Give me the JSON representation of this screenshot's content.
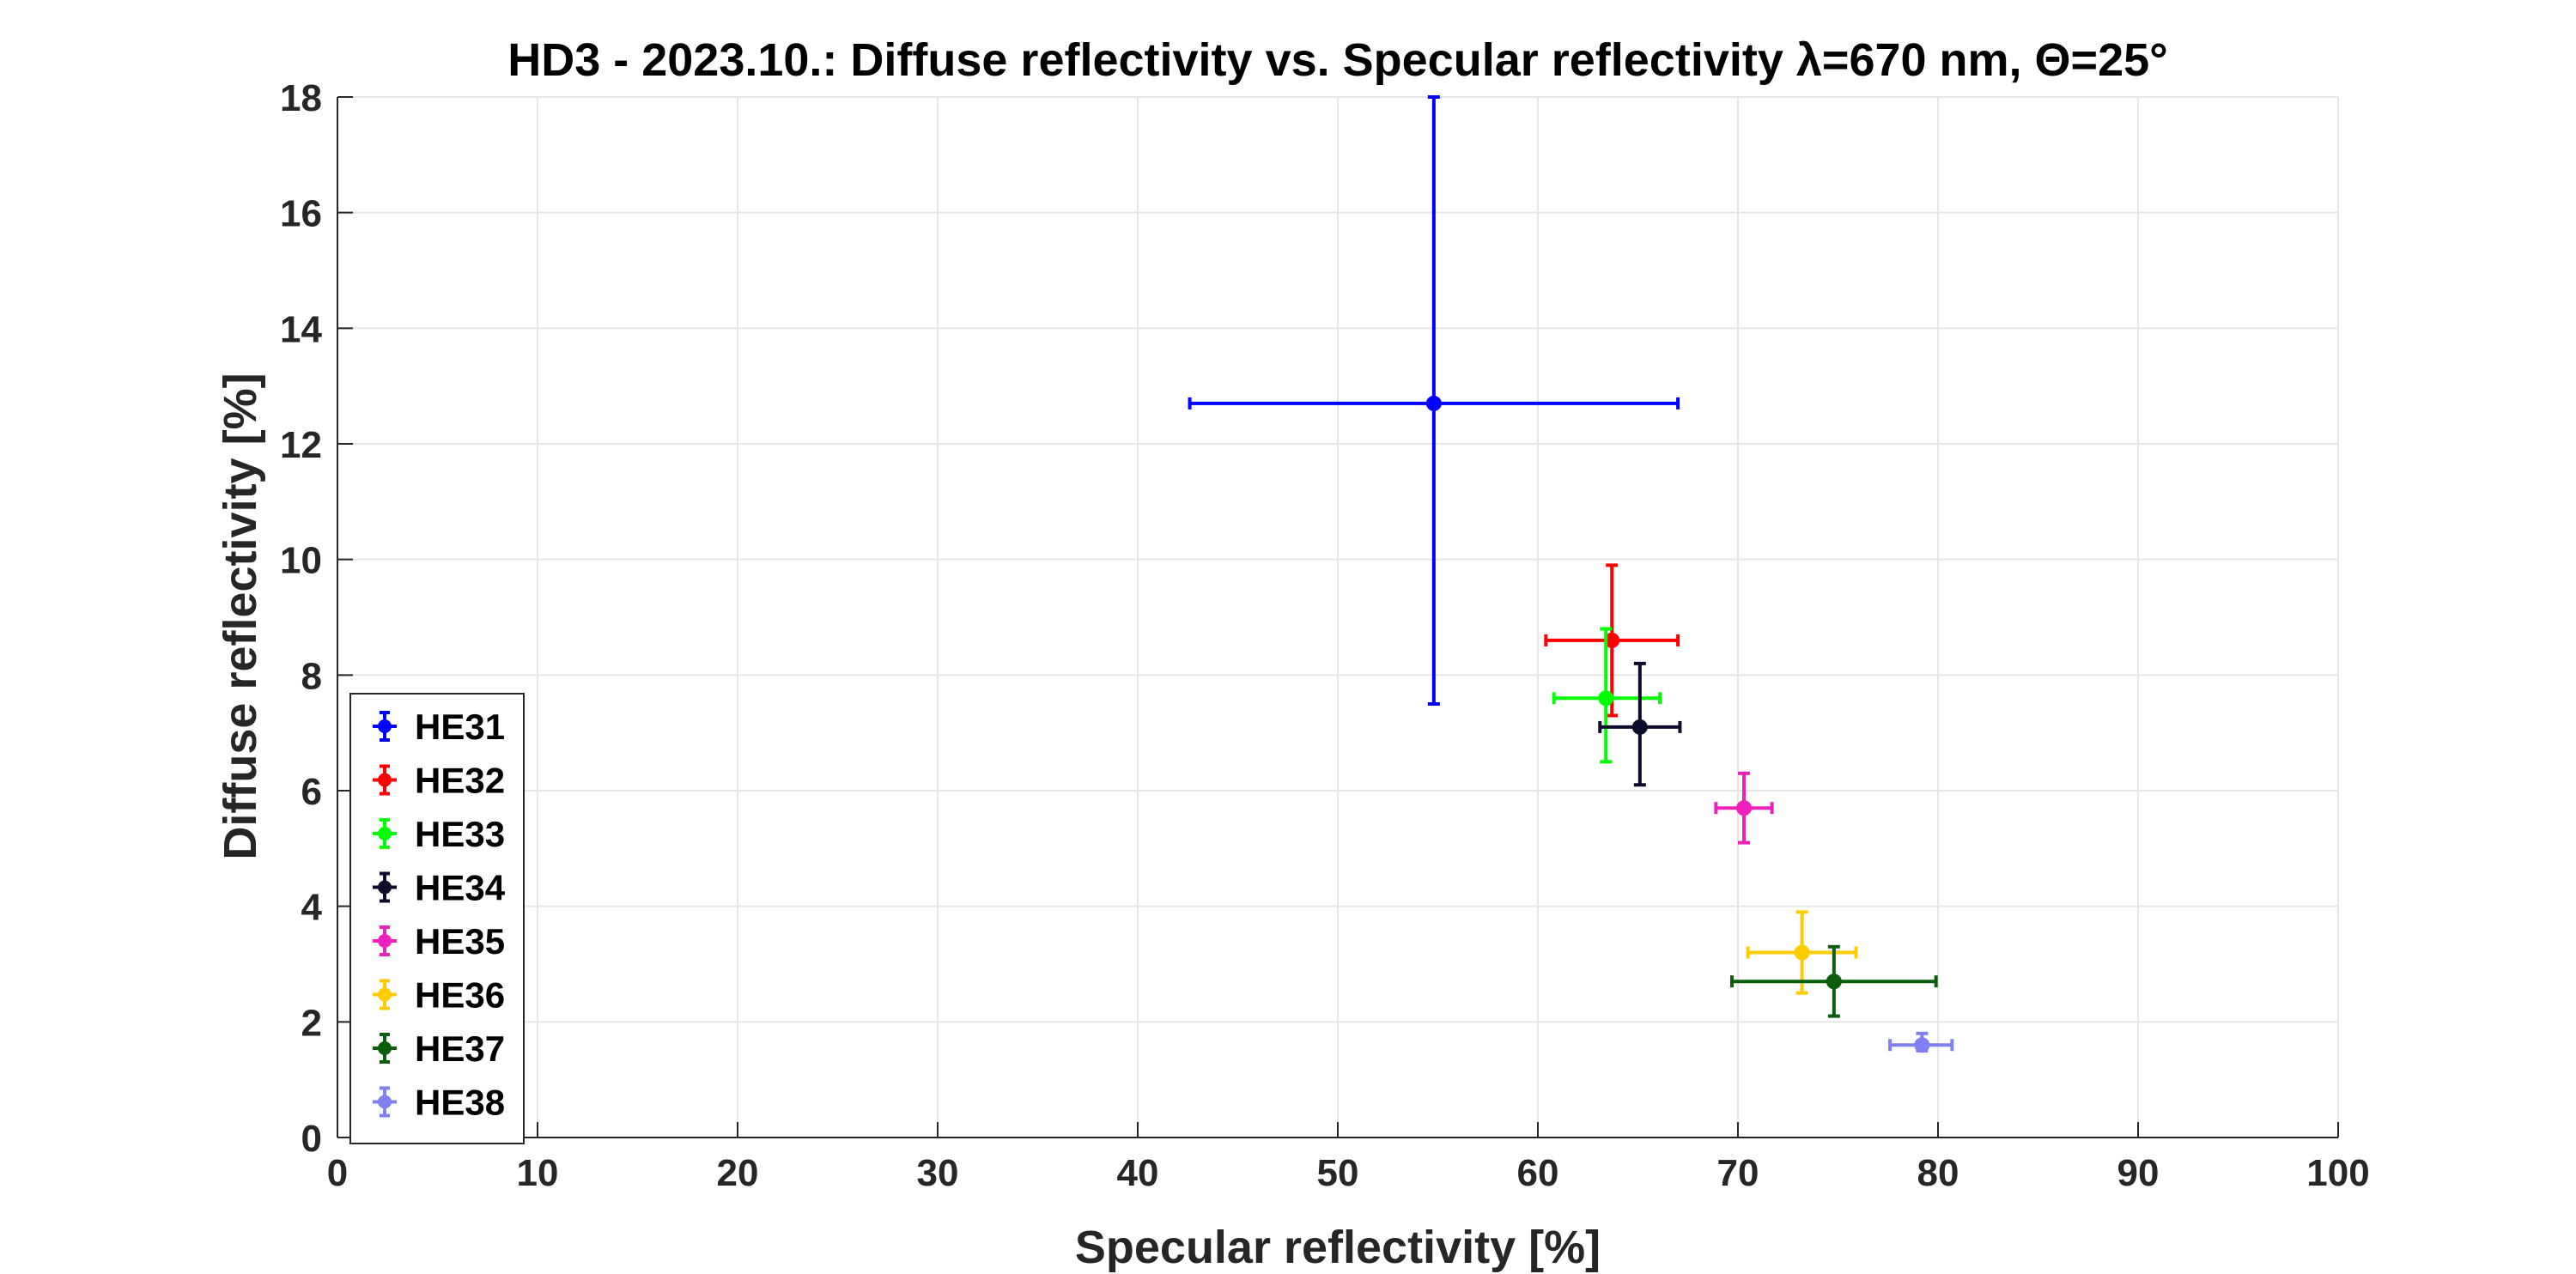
{
  "chart_data": {
    "type": "scatter",
    "title": "HD3 - 2023.10.: Diffuse reflectivity vs. Specular reflectivity λ=670 nm, Θ=25°",
    "xlabel": "Specular reflectivity [%]",
    "ylabel": "Diffuse reflectivity [%]",
    "xlim": [
      0,
      100
    ],
    "ylim": [
      0,
      18
    ],
    "xticks": [
      0,
      10,
      20,
      30,
      40,
      50,
      60,
      70,
      80,
      90,
      100
    ],
    "yticks": [
      0,
      2,
      4,
      6,
      8,
      10,
      12,
      14,
      16,
      18
    ],
    "grid": true,
    "legend_position": "bottom-left",
    "error_bars": true,
    "series": [
      {
        "name": "HE31",
        "color": "#0000ff",
        "x": 54.8,
        "y": 12.7,
        "xerr_low": 42.6,
        "xerr_high": 67.0,
        "yerr_low": 7.5,
        "yerr_high": 18.0
      },
      {
        "name": "HE32",
        "color": "#ff0000",
        "x": 63.7,
        "y": 8.6,
        "xerr_low": 60.4,
        "xerr_high": 67.0,
        "yerr_low": 7.3,
        "yerr_high": 9.9
      },
      {
        "name": "HE33",
        "color": "#00ff00",
        "x": 63.4,
        "y": 7.6,
        "xerr_low": 60.8,
        "xerr_high": 66.1,
        "yerr_low": 6.5,
        "yerr_high": 8.8
      },
      {
        "name": "HE34",
        "color": "#0d0d2b",
        "x": 65.1,
        "y": 7.1,
        "xerr_low": 63.1,
        "xerr_high": 67.1,
        "yerr_low": 6.1,
        "yerr_high": 8.2
      },
      {
        "name": "HE35",
        "color": "#ee22bb",
        "x": 70.3,
        "y": 5.7,
        "xerr_low": 68.9,
        "xerr_high": 71.7,
        "yerr_low": 5.1,
        "yerr_high": 6.3
      },
      {
        "name": "HE36",
        "color": "#ffcc00",
        "x": 73.2,
        "y": 3.2,
        "xerr_low": 70.5,
        "xerr_high": 75.9,
        "yerr_low": 2.5,
        "yerr_high": 3.9
      },
      {
        "name": "HE37",
        "color": "#0b5e0b",
        "x": 74.8,
        "y": 2.7,
        "xerr_low": 69.7,
        "xerr_high": 79.9,
        "yerr_low": 2.1,
        "yerr_high": 3.3
      },
      {
        "name": "HE38",
        "color": "#8080f0",
        "x": 79.2,
        "y": 1.6,
        "xerr_low": 77.6,
        "xerr_high": 80.7,
        "yerr_low": 1.5,
        "yerr_high": 1.8
      }
    ]
  }
}
